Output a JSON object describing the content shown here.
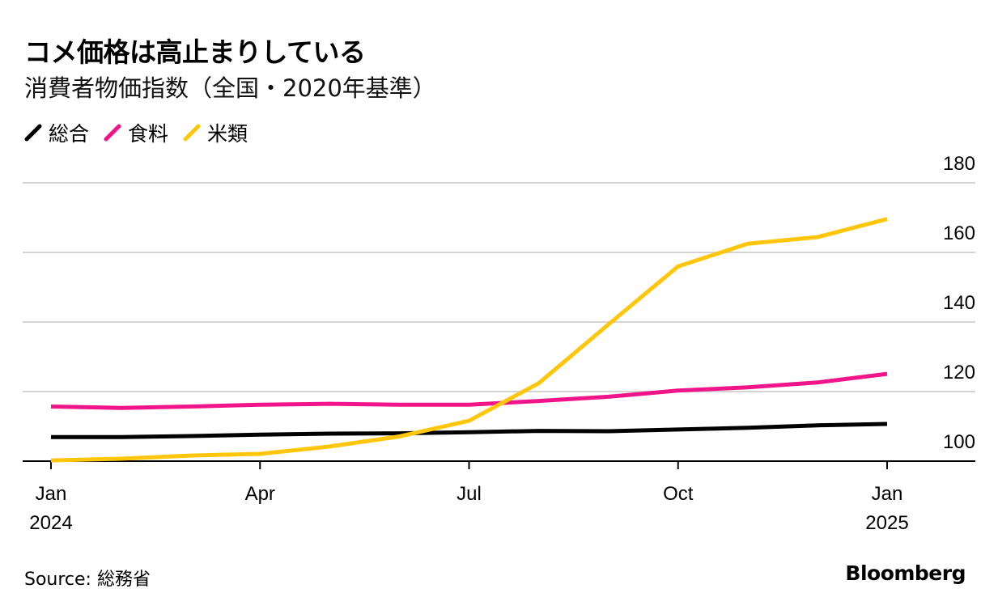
{
  "title": "コメ価格は高止まりしている",
  "subtitle": "消費者物価指数（全国・2020年基準）",
  "source": "Source: 総務省",
  "brand": "Bloomberg",
  "chart_data": {
    "type": "line",
    "x": [
      "2024-01",
      "2024-02",
      "2024-03",
      "2024-04",
      "2024-05",
      "2024-06",
      "2024-07",
      "2024-08",
      "2024-09",
      "2024-10",
      "2024-11",
      "2024-12",
      "2025-01"
    ],
    "x_tick_labels": [
      {
        "x": "2024-01",
        "line1": "Jan",
        "line2": "2024"
      },
      {
        "x": "2024-04",
        "line1": "Apr",
        "line2": ""
      },
      {
        "x": "2024-07",
        "line1": "Jul",
        "line2": ""
      },
      {
        "x": "2024-10",
        "line1": "Oct",
        "line2": ""
      },
      {
        "x": "2025-01",
        "line1": "Jan",
        "line2": "2025"
      }
    ],
    "y_ticks": [
      100,
      120,
      140,
      160,
      180
    ],
    "ylim": [
      100,
      180
    ],
    "grid": true,
    "legend_position": "top-left",
    "series": [
      {
        "name": "総合",
        "color": "#000000",
        "values": [
          106.9,
          106.9,
          107.2,
          107.6,
          107.9,
          108.0,
          108.3,
          108.7,
          108.6,
          109.1,
          109.6,
          110.3,
          110.7
        ]
      },
      {
        "name": "食料",
        "color": "#f2158a",
        "values": [
          115.7,
          115.3,
          115.7,
          116.2,
          116.5,
          116.2,
          116.2,
          117.3,
          118.5,
          120.3,
          121.2,
          122.6,
          125.1
        ]
      },
      {
        "name": "米類",
        "color": "#ffc60b",
        "values": [
          100.2,
          100.7,
          101.6,
          102.1,
          104.2,
          107.1,
          111.6,
          122.4,
          139.3,
          156.0,
          162.5,
          164.4,
          169.6
        ]
      }
    ]
  }
}
